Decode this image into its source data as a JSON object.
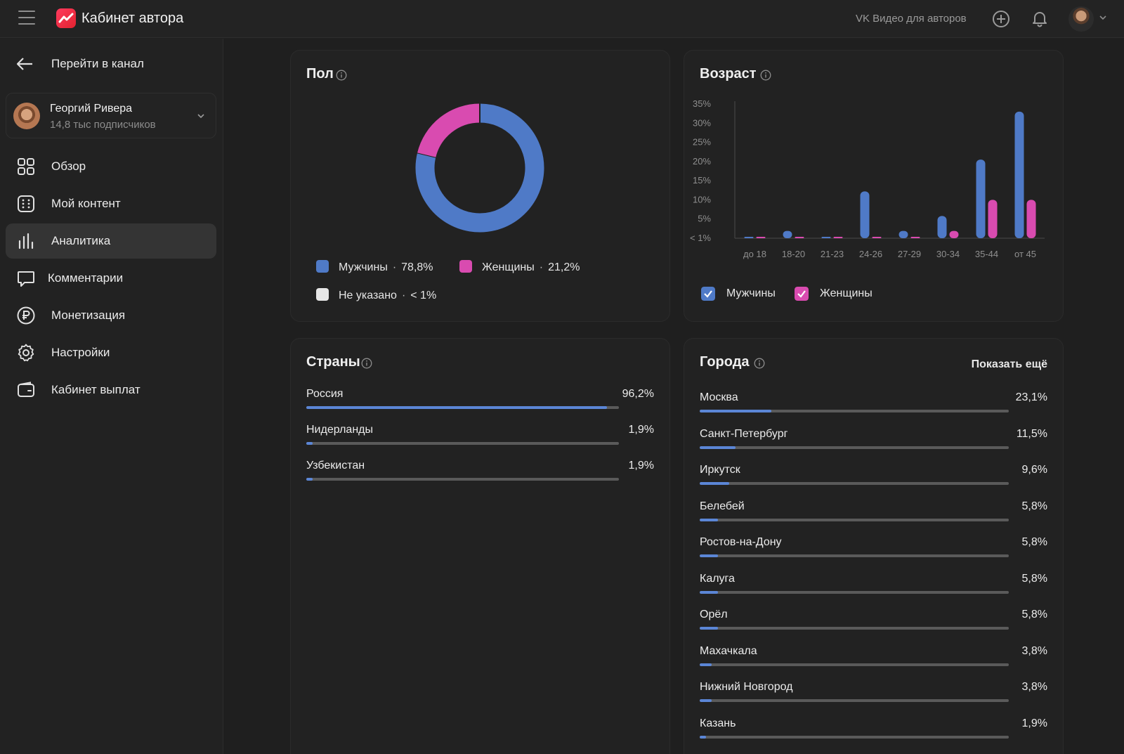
{
  "topbar": {
    "title": "Кабинет автора",
    "vk_link": "VK Видео для авторов"
  },
  "sidebar": {
    "back_label": "Перейти в канал",
    "channel": {
      "name": "Георгий Ривера",
      "subscribers": "14,8 тыс подписчиков"
    },
    "items": [
      {
        "label": "Обзор",
        "icon": "grid-icon"
      },
      {
        "label": "Мой контент",
        "icon": "content-icon"
      },
      {
        "label": "Аналитика",
        "icon": "analytics-icon",
        "active": true
      },
      {
        "label": "Комментарии",
        "icon": "comment-icon"
      },
      {
        "label": "Монетизация",
        "icon": "ruble-icon"
      },
      {
        "label": "Настройки",
        "icon": "gear-icon"
      },
      {
        "label": "Кабинет выплат",
        "icon": "wallet-icon"
      }
    ]
  },
  "gender": {
    "title": "Пол",
    "legend": [
      {
        "label": "Мужчины",
        "value": "78,8%",
        "color": "#4f7ac7"
      },
      {
        "label": "Женщины",
        "value": "21,2%",
        "color": "#d94bb0"
      },
      {
        "label": "Не указано",
        "value": "< 1%",
        "color": "#e6e6e6"
      }
    ]
  },
  "age": {
    "title": "Возраст",
    "legend": [
      {
        "label": "Мужчины",
        "color": "#4f7ac7"
      },
      {
        "label": "Женщины",
        "color": "#d94bb0"
      }
    ]
  },
  "countries": {
    "title": "Страны",
    "rows": [
      {
        "name": "Россия",
        "pct": "96,2%",
        "value": 0.962
      },
      {
        "name": "Нидерланды",
        "pct": "1,9%",
        "value": 0.019
      },
      {
        "name": "Узбекистан",
        "pct": "1,9%",
        "value": 0.019
      }
    ]
  },
  "cities": {
    "title": "Города",
    "show_more": "Показать ещё",
    "rows": [
      {
        "name": "Москва",
        "pct": "23,1%",
        "value": 0.231
      },
      {
        "name": "Санкт-Петербург",
        "pct": "11,5%",
        "value": 0.115
      },
      {
        "name": "Иркутск",
        "pct": "9,6%",
        "value": 0.096
      },
      {
        "name": "Белебей",
        "pct": "5,8%",
        "value": 0.058
      },
      {
        "name": "Ростов-на-Дону",
        "pct": "5,8%",
        "value": 0.058
      },
      {
        "name": "Калуга",
        "pct": "5,8%",
        "value": 0.058
      },
      {
        "name": "Орёл",
        "pct": "5,8%",
        "value": 0.058
      },
      {
        "name": "Махачкала",
        "pct": "3,8%",
        "value": 0.038
      },
      {
        "name": "Нижний Новгород",
        "pct": "3,8%",
        "value": 0.038
      },
      {
        "name": "Казань",
        "pct": "1,9%",
        "value": 0.019
      }
    ]
  },
  "chart_data": [
    {
      "type": "pie",
      "title": "Пол",
      "categories": [
        "Мужчины",
        "Женщины",
        "Не указано"
      ],
      "values": [
        78.8,
        21.2,
        0
      ]
    },
    {
      "type": "bar",
      "title": "Возраст",
      "categories": [
        "до 18",
        "18-20",
        "21-23",
        "24-26",
        "27-29",
        "30-34",
        "35-44",
        "от 45"
      ],
      "yticks": [
        "< 1%",
        "5%",
        "10%",
        "15%",
        "20%",
        "25%",
        "30%",
        "35%"
      ],
      "ylim": [
        0,
        35
      ],
      "series": [
        {
          "name": "Мужчины",
          "color": "#4f7ac7",
          "values": [
            0.2,
            1.9,
            0.2,
            12.2,
            1.9,
            5.8,
            20.5,
            33.0
          ]
        },
        {
          "name": "Женщины",
          "color": "#d94bb0",
          "values": [
            0.2,
            0.2,
            0.2,
            0.2,
            0.2,
            1.9,
            10.0,
            10.0
          ]
        }
      ]
    }
  ]
}
